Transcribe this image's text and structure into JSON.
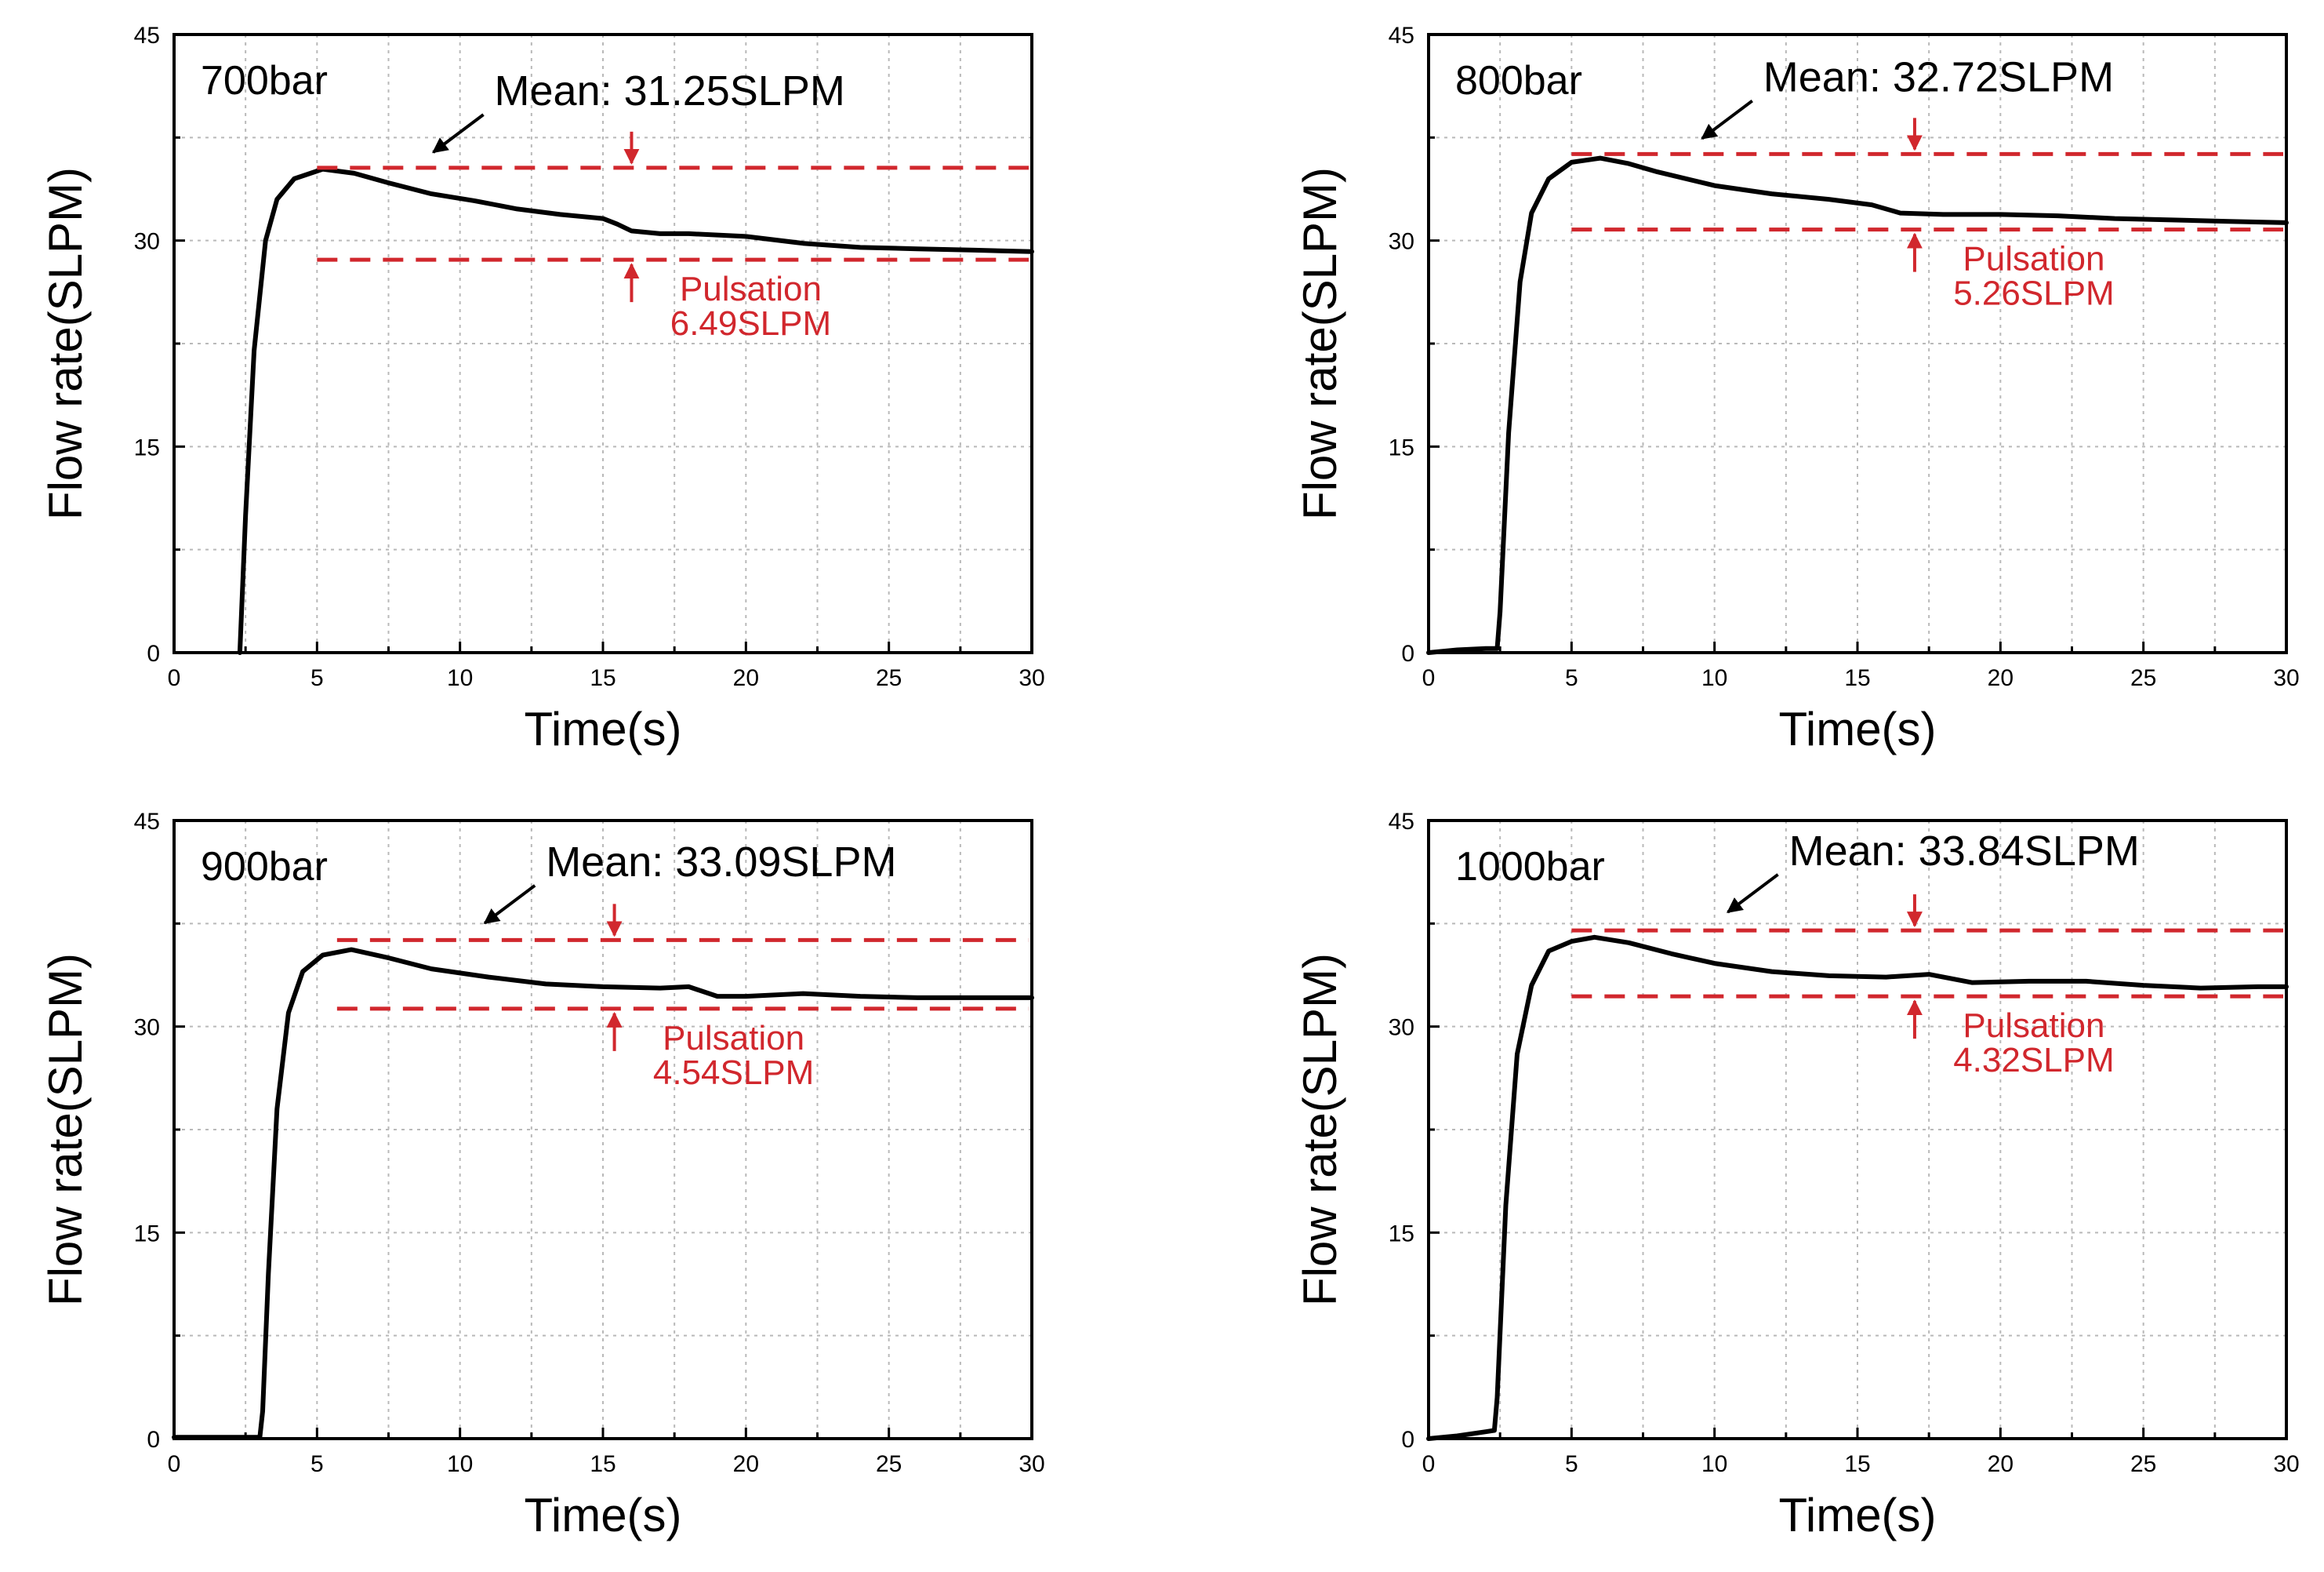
{
  "chart_data": [
    {
      "type": "line",
      "panel_label": "700bar",
      "xlabel": "Time(s)",
      "ylabel": "Flow rate(SLPM)",
      "xlim": [
        0,
        30
      ],
      "ylim": [
        0,
        45
      ],
      "xticks": [
        "0",
        "5",
        "10",
        "15",
        "20",
        "25",
        "30"
      ],
      "yticks": [
        "0",
        "15",
        "30",
        "45"
      ],
      "grid": true,
      "series": [
        {
          "name": "flow",
          "points": [
            [
              2.3,
              0
            ],
            [
              2.5,
              10
            ],
            [
              2.8,
              22
            ],
            [
              3.2,
              30
            ],
            [
              3.6,
              33
            ],
            [
              4.2,
              34.5
            ],
            [
              5.2,
              35.2
            ],
            [
              6.3,
              34.9
            ],
            [
              7.5,
              34.2
            ],
            [
              9,
              33.4
            ],
            [
              10.5,
              32.9
            ],
            [
              12,
              32.3
            ],
            [
              13.5,
              31.9
            ],
            [
              15,
              31.6
            ],
            [
              15.5,
              31.2
            ],
            [
              16,
              30.7
            ],
            [
              17,
              30.5
            ],
            [
              18,
              30.5
            ],
            [
              20,
              30.3
            ],
            [
              22,
              29.8
            ],
            [
              24,
              29.5
            ],
            [
              26,
              29.4
            ],
            [
              28,
              29.3
            ],
            [
              30,
              29.2
            ]
          ]
        }
      ],
      "mean_label": "Mean: 31.25SLPM",
      "pulsation_label_1": "Pulsation",
      "pulsation_label_2": "6.49SLPM",
      "upper_line": 35.3,
      "lower_line": 28.6,
      "ref_line_start_x": 5,
      "pulsation_arrow_x": 16,
      "mean_arrow_target": [
        8.9,
        36.2
      ]
    },
    {
      "type": "line",
      "panel_label": "800bar",
      "xlabel": "Time(s)",
      "ylabel": "Flow rate(SLPM)",
      "xlim": [
        0,
        30
      ],
      "ylim": [
        0,
        45
      ],
      "xticks": [
        "0",
        "5",
        "10",
        "15",
        "20",
        "25",
        "30"
      ],
      "yticks": [
        "0",
        "15",
        "30",
        "45"
      ],
      "grid": true,
      "series": [
        {
          "name": "flow",
          "points": [
            [
              0,
              0
            ],
            [
              1,
              0.2
            ],
            [
              2,
              0.3
            ],
            [
              2.4,
              0.3
            ],
            [
              2.5,
              3
            ],
            [
              2.8,
              16
            ],
            [
              3.2,
              27
            ],
            [
              3.6,
              32
            ],
            [
              4.2,
              34.5
            ],
            [
              5,
              35.7
            ],
            [
              6,
              36
            ],
            [
              7,
              35.6
            ],
            [
              8,
              35
            ],
            [
              10,
              34
            ],
            [
              12,
              33.4
            ],
            [
              14,
              33
            ],
            [
              15.5,
              32.6
            ],
            [
              16.5,
              32
            ],
            [
              18,
              31.9
            ],
            [
              20,
              31.9
            ],
            [
              22,
              31.8
            ],
            [
              24,
              31.6
            ],
            [
              26,
              31.5
            ],
            [
              28,
              31.4
            ],
            [
              30,
              31.3
            ]
          ]
        }
      ],
      "mean_label": "Mean: 32.72SLPM",
      "pulsation_label_1": "Pulsation",
      "pulsation_label_2": "5.26SLPM",
      "upper_line": 36.3,
      "lower_line": 30.8,
      "ref_line_start_x": 5,
      "pulsation_arrow_x": 17,
      "mean_arrow_target": [
        9.4,
        37.2
      ]
    },
    {
      "type": "line",
      "panel_label": "900bar",
      "xlabel": "Time(s)",
      "ylabel": "Flow rate(SLPM)",
      "xlim": [
        0,
        30
      ],
      "ylim": [
        0,
        45
      ],
      "xticks": [
        "0",
        "5",
        "10",
        "15",
        "20",
        "25",
        "30"
      ],
      "yticks": [
        "0",
        "15",
        "30",
        "45"
      ],
      "grid": true,
      "series": [
        {
          "name": "flow",
          "points": [
            [
              0,
              0.1
            ],
            [
              1.5,
              0.1
            ],
            [
              3,
              0.1
            ],
            [
              3.1,
              2
            ],
            [
              3.3,
              12
            ],
            [
              3.6,
              24
            ],
            [
              4,
              31
            ],
            [
              4.5,
              34
            ],
            [
              5.2,
              35.2
            ],
            [
              6.2,
              35.6
            ],
            [
              7.5,
              35
            ],
            [
              9,
              34.2
            ],
            [
              11,
              33.6
            ],
            [
              13,
              33.1
            ],
            [
              15,
              32.9
            ],
            [
              17,
              32.8
            ],
            [
              18,
              32.9
            ],
            [
              19,
              32.2
            ],
            [
              20,
              32.2
            ],
            [
              22,
              32.4
            ],
            [
              24,
              32.2
            ],
            [
              26,
              32.1
            ],
            [
              28,
              32.1
            ],
            [
              30,
              32.1
            ]
          ]
        }
      ],
      "mean_label": "Mean: 33.09SLPM",
      "pulsation_label_1": "Pulsation",
      "pulsation_label_2": "4.54SLPM",
      "upper_line": 36.3,
      "lower_line": 31.3,
      "ref_line_start_x": 5.7,
      "pulsation_arrow_x": 15.4,
      "mean_arrow_target": [
        10.7,
        37.3
      ]
    },
    {
      "type": "line",
      "panel_label": "1000bar",
      "xlabel": "Time(s)",
      "ylabel": "Flow rate(SLPM)",
      "xlim": [
        0,
        30
      ],
      "ylim": [
        0,
        45
      ],
      "xticks": [
        "0",
        "5",
        "10",
        "15",
        "20",
        "25",
        "30"
      ],
      "yticks": [
        "0",
        "15",
        "30",
        "45"
      ],
      "grid": true,
      "series": [
        {
          "name": "flow",
          "points": [
            [
              0,
              0
            ],
            [
              1,
              0.2
            ],
            [
              2,
              0.5
            ],
            [
              2.3,
              0.6
            ],
            [
              2.4,
              3
            ],
            [
              2.7,
              17
            ],
            [
              3.1,
              28
            ],
            [
              3.6,
              33
            ],
            [
              4.2,
              35.5
            ],
            [
              5,
              36.2
            ],
            [
              5.8,
              36.5
            ],
            [
              7,
              36.1
            ],
            [
              8.5,
              35.3
            ],
            [
              10,
              34.6
            ],
            [
              12,
              34
            ],
            [
              14,
              33.7
            ],
            [
              16,
              33.6
            ],
            [
              17.5,
              33.8
            ],
            [
              19,
              33.2
            ],
            [
              21,
              33.3
            ],
            [
              23,
              33.3
            ],
            [
              25,
              33
            ],
            [
              27,
              32.8
            ],
            [
              29,
              32.9
            ],
            [
              30,
              32.9
            ]
          ]
        }
      ],
      "mean_label": "Mean: 33.84SLPM",
      "pulsation_label_1": "Pulsation",
      "pulsation_label_2": "4.32SLPM",
      "upper_line": 37,
      "lower_line": 32.2,
      "ref_line_start_x": 5,
      "pulsation_arrow_x": 17,
      "mean_arrow_target": [
        10.3,
        38.1
      ]
    }
  ]
}
